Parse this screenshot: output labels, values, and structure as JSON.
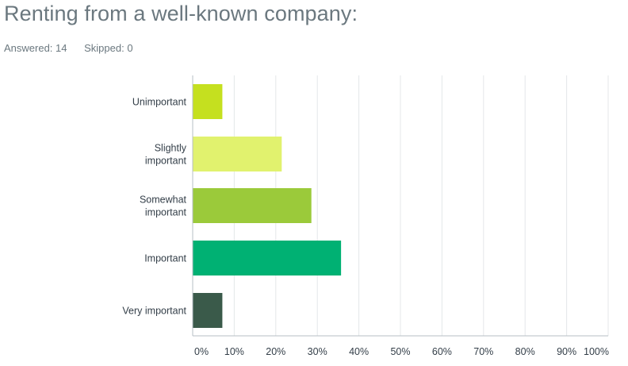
{
  "header": {
    "title": "Renting from a well-known company:",
    "answered_label": "Answered: 14",
    "skipped_label": "Skipped: 0"
  },
  "chart_data": {
    "type": "bar",
    "orientation": "horizontal",
    "categories": [
      [
        "Unimportant"
      ],
      [
        "Slightly",
        "important"
      ],
      [
        "Somewhat",
        "important"
      ],
      [
        "Important"
      ],
      [
        "Very important"
      ]
    ],
    "values": [
      7.14,
      21.43,
      28.57,
      35.71,
      7.14
    ],
    "colors": [
      "#c5e01f",
      "#e1f26e",
      "#9bca3a",
      "#00b173",
      "#3a5a4a"
    ],
    "xlim": [
      0,
      100
    ],
    "xticks": [
      "0%",
      "10%",
      "20%",
      "30%",
      "40%",
      "50%",
      "60%",
      "70%",
      "80%",
      "90%",
      "100%"
    ],
    "grid": true,
    "legend": "none"
  }
}
